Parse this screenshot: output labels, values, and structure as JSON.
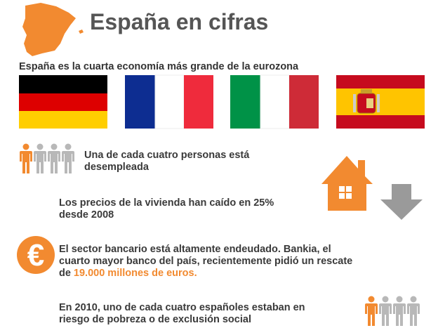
{
  "header": {
    "title": "España en cifras",
    "subtitle": "España es la cuarta economía más grande de la eurozona"
  },
  "facts": [
    {
      "lines": [
        "Una de cada cuatro personas está",
        "desempleada"
      ]
    },
    {
      "lines": [
        "Los precios de la vivienda han caído en 25%",
        "desde 2008"
      ]
    },
    {
      "icon": "€",
      "lines": [
        "El sector bancario está altamente endeudado. Bankia, el",
        "cuarto mayor banco del país, recientemente pidió un rescate",
        "de"
      ],
      "highlight": "19.000 millones de euros."
    },
    {
      "lines": [
        "En 2010, uno de cada cuatro españoles estaban en",
        "riesgo de pobreza o de exclusión social"
      ]
    }
  ]
}
